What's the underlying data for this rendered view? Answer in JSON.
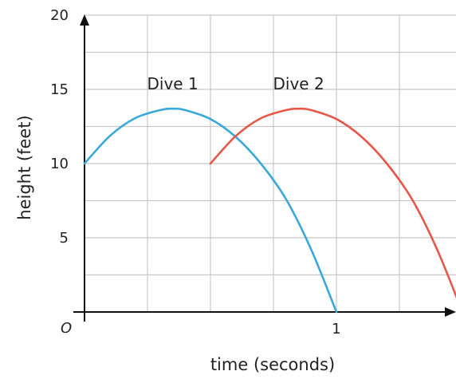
{
  "chart_data": {
    "type": "line",
    "xlabel": "time (seconds)",
    "ylabel": "height (feet)",
    "xlim": [
      0,
      1.5
    ],
    "ylim": [
      0,
      20
    ],
    "x_ticks": [
      {
        "value": 1,
        "label": "1"
      }
    ],
    "y_ticks": [
      {
        "value": 5,
        "label": "5"
      },
      {
        "value": 10,
        "label": "10"
      },
      {
        "value": 15,
        "label": "15"
      },
      {
        "value": 20,
        "label": "20"
      }
    ],
    "origin_label": "O",
    "grid": true,
    "grid_x_step": 0.25,
    "grid_y_step": 2.5,
    "series": [
      {
        "name": "Dive 1",
        "color": "#3aa8d8",
        "x": [
          0,
          0.1,
          0.2,
          0.3,
          0.35,
          0.4,
          0.5,
          0.6,
          0.7,
          0.8,
          0.9,
          1.0
        ],
        "y": [
          10,
          11.85,
          13.05,
          13.6,
          13.7,
          13.6,
          13.0,
          11.8,
          10.0,
          7.6,
          4.2,
          0
        ]
      },
      {
        "name": "Dive 2",
        "color": "#e8564a",
        "x": [
          0.5,
          0.6,
          0.7,
          0.8,
          0.85,
          0.9,
          1.0,
          1.1,
          1.2,
          1.3,
          1.4,
          1.5
        ],
        "y": [
          10,
          11.85,
          13.05,
          13.6,
          13.7,
          13.6,
          13.0,
          11.8,
          10.0,
          7.6,
          4.2,
          0
        ]
      }
    ]
  }
}
